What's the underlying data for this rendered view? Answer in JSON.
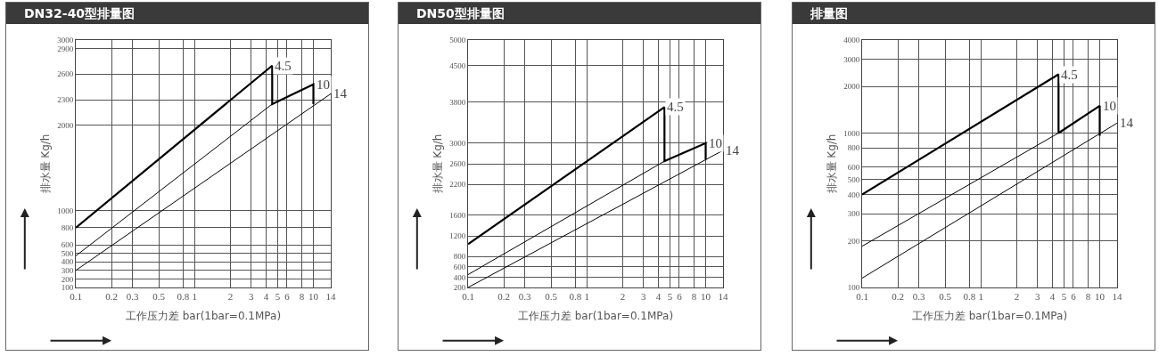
{
  "chart_data": [
    {
      "type": "line",
      "title": "DN32-40型排量图",
      "xlabel": "工作压力差 bar(1bar=0.1MPa)",
      "ylabel": "排水量 Kg/h",
      "log": "x",
      "grid": true,
      "marker": "none",
      "xlim": [
        0.1,
        14
      ],
      "xticks": [
        0.1,
        0.2,
        0.3,
        0.5,
        0.8,
        1,
        2,
        3,
        4,
        5,
        6,
        8,
        10,
        14
      ],
      "ylim": [
        100,
        3000
      ],
      "yticks": [
        100,
        200,
        300,
        400,
        500,
        600,
        800,
        1000,
        2000,
        2300,
        2600,
        2900,
        3000
      ],
      "series": [
        {
          "color": "#000000",
          "x": [
            0.1,
            4.5,
            4.5,
            10,
            10
          ],
          "values": [
            800,
            2700,
            2250,
            2480,
            2250
          ]
        },
        {
          "color": "#000000",
          "x": [
            0.1,
            4.5
          ],
          "values": [
            470,
            2250
          ]
        },
        {
          "color": "#000000",
          "x": [
            0.1,
            14
          ],
          "values": [
            300,
            2370
          ]
        }
      ],
      "annotations": [
        {
          "text": "4.5",
          "x": 4.5,
          "y": 2700
        },
        {
          "text": "10",
          "x": 10,
          "y": 2480
        },
        {
          "text": "14",
          "x": 14,
          "y": 2370
        }
      ]
    },
    {
      "type": "line",
      "title": "DN50型排量图",
      "xlabel": "工作压力差 bar(1bar=0.1MPa)",
      "ylabel": "排水量 Kg/h",
      "log": "x",
      "grid": true,
      "marker": "none",
      "xlim": [
        0.1,
        14
      ],
      "xticks": [
        0.1,
        0.2,
        0.3,
        0.5,
        0.8,
        1,
        2,
        3,
        4,
        5,
        6,
        8,
        10,
        14
      ],
      "ylim": [
        200,
        5000
      ],
      "yticks": [
        200,
        400,
        600,
        800,
        1200,
        1600,
        2200,
        2600,
        3000,
        3800,
        4500,
        5000
      ],
      "series": [
        {
          "color": "#000000",
          "x": [
            0.1,
            4.5,
            4.5,
            10,
            10
          ],
          "values": [
            1040,
            3700,
            2650,
            3000,
            2680
          ]
        },
        {
          "color": "#000000",
          "x": [
            0.1,
            4.5
          ],
          "values": [
            450,
            2650
          ]
        },
        {
          "color": "#000000",
          "x": [
            0.1,
            14
          ],
          "values": [
            200,
            2860
          ]
        }
      ],
      "annotations": [
        {
          "text": "4.5",
          "x": 4.5,
          "y": 3700
        },
        {
          "text": "10",
          "x": 10,
          "y": 3000
        },
        {
          "text": "14",
          "x": 14,
          "y": 2860
        }
      ]
    },
    {
      "type": "line",
      "title": "排量图",
      "xlabel": "工作压力差 bar(1bar=0.1MPa)",
      "ylabel": "排水量 Kg/h",
      "log": "xy",
      "grid": true,
      "marker": "none",
      "xlim": [
        0.1,
        14
      ],
      "xticks": [
        0.1,
        0.2,
        0.3,
        0.5,
        0.8,
        1,
        2,
        3,
        4,
        5,
        6,
        8,
        10,
        14
      ],
      "ylim": [
        100,
        4000
      ],
      "yticks": [
        100,
        200,
        300,
        400,
        500,
        600,
        800,
        1000,
        2000,
        3000,
        4000
      ],
      "series": [
        {
          "color": "#000000",
          "x": [
            0.1,
            4.5,
            4.5,
            10,
            10
          ],
          "values": [
            400,
            2400,
            1000,
            1500,
            960
          ]
        },
        {
          "color": "#000000",
          "x": [
            0.1,
            4.5
          ],
          "values": [
            185,
            1000
          ]
        },
        {
          "color": "#000000",
          "x": [
            0.1,
            14
          ],
          "values": [
            115,
            1160
          ]
        }
      ],
      "annotations": [
        {
          "text": "4.5",
          "x": 4.5,
          "y": 2400
        },
        {
          "text": "10",
          "x": 10,
          "y": 1500
        },
        {
          "text": "14",
          "x": 14,
          "y": 1160
        }
      ]
    }
  ]
}
